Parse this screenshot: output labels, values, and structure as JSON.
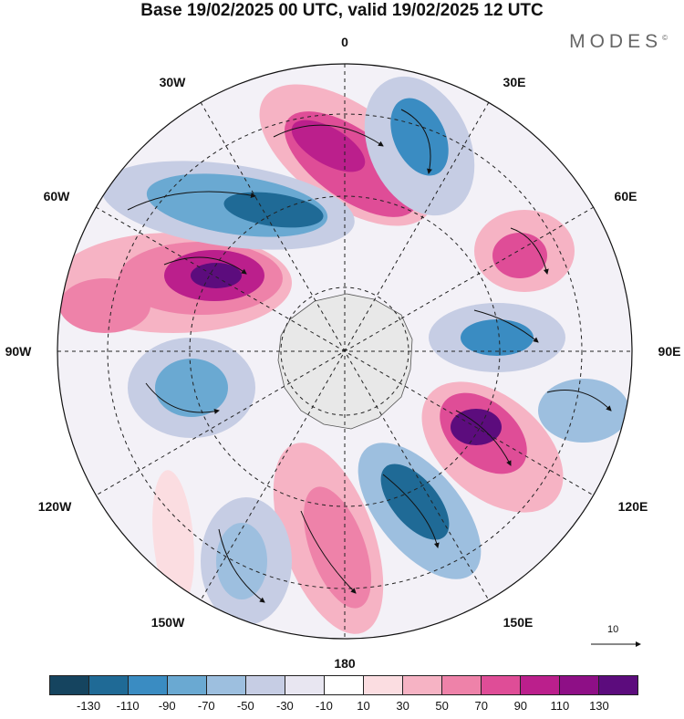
{
  "title": "Base 19/02/2025 00 UTC, valid 19/02/2025 12 UTC",
  "brand": "MODES",
  "brand_mark": "©",
  "longitude_labels": [
    {
      "key": "0",
      "text": "0"
    },
    {
      "key": "30E",
      "text": "30E"
    },
    {
      "key": "60E",
      "text": "60E"
    },
    {
      "key": "90E",
      "text": "90E"
    },
    {
      "key": "120E",
      "text": "120E"
    },
    {
      "key": "150E",
      "text": "150E"
    },
    {
      "key": "180",
      "text": "180"
    },
    {
      "key": "150W",
      "text": "150W"
    },
    {
      "key": "120W",
      "text": "120W"
    },
    {
      "key": "90W",
      "text": "90W"
    },
    {
      "key": "60W",
      "text": "60W"
    },
    {
      "key": "30W",
      "text": "30W"
    }
  ],
  "reference_vector": {
    "label": "10"
  },
  "colorbar": {
    "colors": [
      "#15445f",
      "#1f6a96",
      "#3a8cc2",
      "#6aa9d2",
      "#9dbfdf",
      "#c6cde4",
      "#e8e6f1",
      "#ffffff",
      "#fbdde1",
      "#f6b3c4",
      "#ee82a9",
      "#df4d97",
      "#bb1f8c",
      "#8e0f86",
      "#5c0c7d"
    ],
    "ticks": [
      "-130",
      "-110",
      "-90",
      "-70",
      "-50",
      "-30",
      "-10",
      "10",
      "30",
      "50",
      "70",
      "90",
      "110",
      "130"
    ]
  },
  "map": {
    "projection": "polar-stereographic-south",
    "antarctica_color": "#e8e8e8",
    "land_outline_color": "#555555"
  }
}
